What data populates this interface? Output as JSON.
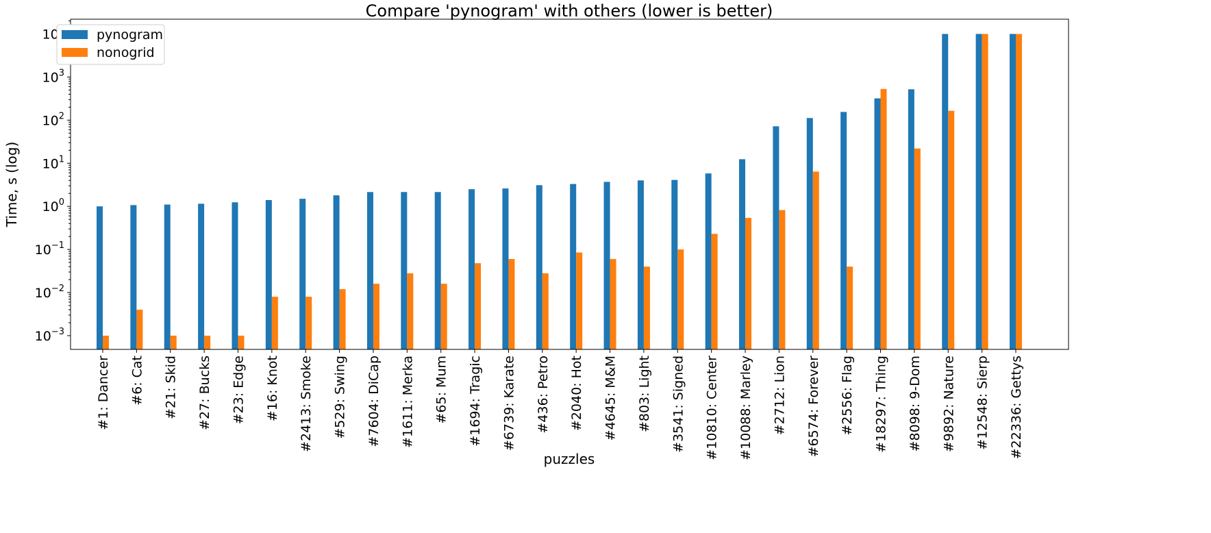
{
  "chart_data": {
    "type": "bar",
    "title": "Compare 'pynogram' with others (lower is better)",
    "xlabel": "puzzles",
    "ylabel": "Time, s (log)",
    "yscale": "log",
    "ylim": [
      0.00048,
      22000
    ],
    "yticks": [
      {
        "base": "10",
        "exp": "−3",
        "value": 0.001
      },
      {
        "base": "10",
        "exp": "−2",
        "value": 0.01
      },
      {
        "base": "10",
        "exp": "−1",
        "value": 0.1
      },
      {
        "base": "10",
        "exp": "0",
        "value": 1
      },
      {
        "base": "10",
        "exp": "1",
        "value": 10
      },
      {
        "base": "10",
        "exp": "2",
        "value": 100
      },
      {
        "base": "10",
        "exp": "3",
        "value": 1000
      },
      {
        "base": "10",
        "exp": "4",
        "value": 10000
      }
    ],
    "grid": false,
    "legend_position": "top-left",
    "categories": [
      "#1: Dancer",
      "#6: Cat",
      "#21: Skid",
      "#27: Bucks",
      "#23: Edge",
      "#16: Knot",
      "#2413: Smoke",
      "#529: Swing",
      "#7604: DiCap",
      "#1611: Merka",
      "#65: Mum",
      "#1694: Tragic",
      "#6739: Karate",
      "#436: Petro",
      "#2040: Hot",
      "#4645: M&M",
      "#803: Light",
      "#3541: Signed",
      "#10810: Center",
      "#10088: Marley",
      "#2712: Lion",
      "#6574: Forever",
      "#2556: Flag",
      "#18297: Thing",
      "#8098: 9-Dom",
      "#9892: Nature",
      "#12548: Sierp",
      "#22336: Gettys"
    ],
    "series": [
      {
        "name": "pynogram",
        "color": "#1f77b4",
        "values": [
          1.0,
          1.07,
          1.1,
          1.15,
          1.24,
          1.4,
          1.5,
          1.8,
          2.15,
          2.15,
          2.15,
          2.5,
          2.6,
          3.1,
          3.3,
          3.7,
          4.0,
          4.1,
          5.8,
          12.4,
          72,
          112,
          155,
          320,
          520,
          10000,
          10000,
          10000
        ]
      },
      {
        "name": "nonogrid",
        "color": "#ff7f0e",
        "values": [
          0.001,
          0.004,
          0.001,
          0.001,
          0.001,
          0.008,
          0.008,
          0.012,
          0.016,
          0.028,
          0.016,
          0.048,
          0.06,
          0.028,
          0.085,
          0.06,
          0.04,
          0.1,
          0.23,
          0.54,
          0.82,
          6.4,
          0.04,
          530,
          22,
          165,
          10000,
          10000
        ]
      }
    ]
  }
}
